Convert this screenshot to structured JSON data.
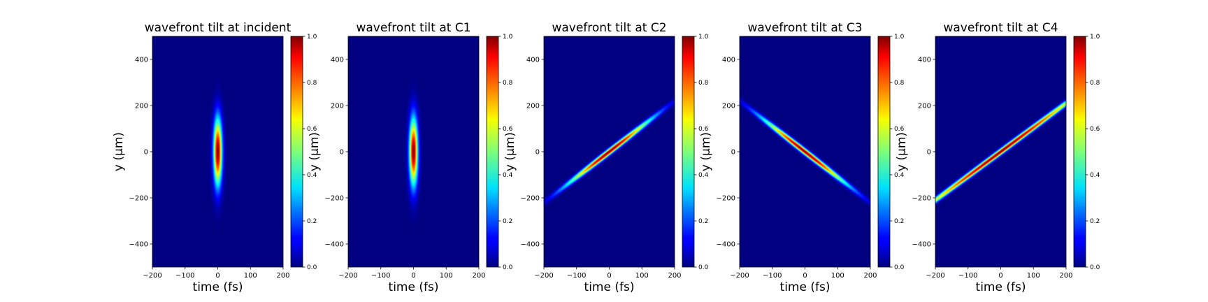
{
  "chart_data": [
    {
      "type": "heatmap",
      "title": "wavefront tilt at incident",
      "xlabel": "time (fs)",
      "ylabel": "y (μm)",
      "xlim": [
        -200,
        200
      ],
      "ylim": [
        -500,
        500
      ],
      "xticks": [
        -200,
        -100,
        0,
        100,
        200
      ],
      "yticks": [
        -400,
        -200,
        0,
        200,
        400
      ],
      "colorbar": {
        "range": [
          0,
          1
        ],
        "ticks": [
          "0.0",
          "0.2",
          "0.4",
          "0.6",
          "0.8",
          "1.0"
        ],
        "colormap": "jet"
      },
      "pulse": {
        "center_time_fs": 0,
        "center_y_um": 0,
        "time_width_fs": 9,
        "y_width_um": 100,
        "tilt_fs_per_um": 0
      }
    },
    {
      "type": "heatmap",
      "title": "wavefront tilt at C1",
      "xlabel": "time (fs)",
      "ylabel": "y (μm)",
      "xlim": [
        -200,
        200
      ],
      "ylim": [
        -500,
        500
      ],
      "xticks": [
        -200,
        -100,
        0,
        100,
        200
      ],
      "yticks": [
        -400,
        -200,
        0,
        200,
        400
      ],
      "colorbar": {
        "range": [
          0,
          1
        ],
        "ticks": [
          "0.0",
          "0.2",
          "0.4",
          "0.6",
          "0.8",
          "1.0"
        ],
        "colormap": "jet"
      },
      "pulse": {
        "center_time_fs": 0,
        "center_y_um": 0,
        "time_width_fs": 9,
        "y_width_um": 100,
        "tilt_fs_per_um": 0
      }
    },
    {
      "type": "heatmap",
      "title": "wavefront tilt at C2",
      "xlabel": "time (fs)",
      "ylabel": "y (μm)",
      "xlim": [
        -200,
        200
      ],
      "ylim": [
        -500,
        500
      ],
      "xticks": [
        -200,
        -100,
        0,
        100,
        200
      ],
      "yticks": [
        -400,
        -200,
        0,
        200,
        400
      ],
      "colorbar": {
        "range": [
          0,
          1
        ],
        "ticks": [
          "0.0",
          "0.2",
          "0.4",
          "0.6",
          "0.8",
          "1.0"
        ],
        "colormap": "jet"
      },
      "pulse": {
        "center_time_fs": 0,
        "center_y_um": 0,
        "time_width_fs": 9,
        "y_width_um": 100,
        "tilt_fs_per_um": 0.9
      }
    },
    {
      "type": "heatmap",
      "title": "wavefront tilt at C3",
      "xlabel": "time (fs)",
      "ylabel": "y (μm)",
      "xlim": [
        -200,
        200
      ],
      "ylim": [
        -500,
        500
      ],
      "xticks": [
        -200,
        -100,
        0,
        100,
        200
      ],
      "yticks": [
        -400,
        -200,
        0,
        200,
        400
      ],
      "colorbar": {
        "range": [
          0,
          1
        ],
        "ticks": [
          "0.0",
          "0.2",
          "0.4",
          "0.6",
          "0.8",
          "1.0"
        ],
        "colormap": "jet"
      },
      "pulse": {
        "center_time_fs": 0,
        "center_y_um": 0,
        "time_width_fs": 9,
        "y_width_um": 100,
        "tilt_fs_per_um": -0.9
      }
    },
    {
      "type": "heatmap",
      "title": "wavefront tilt at C4",
      "xlabel": "time (fs)",
      "ylabel": "y (μm)",
      "xlim": [
        -200,
        200
      ],
      "ylim": [
        -500,
        500
      ],
      "xticks": [
        -200,
        -100,
        0,
        100,
        200
      ],
      "yticks": [
        -400,
        -200,
        0,
        200,
        400
      ],
      "colorbar": {
        "range": [
          0,
          1
        ],
        "ticks": [
          "0.0",
          "0.2",
          "0.4",
          "0.6",
          "0.8",
          "1.0"
        ],
        "colormap": "jet"
      },
      "pulse": {
        "center_time_fs": 0,
        "center_y_um": 0,
        "time_width_fs": 9,
        "y_width_um": 200,
        "tilt_fs_per_um": 0.95
      }
    }
  ]
}
